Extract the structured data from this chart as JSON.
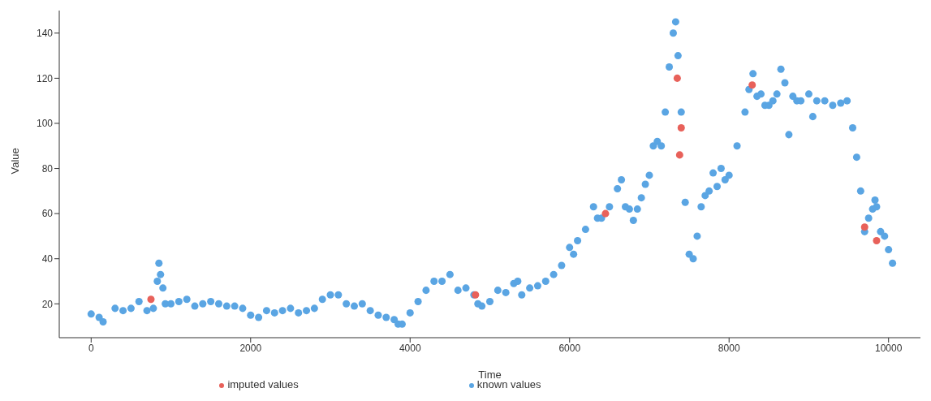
{
  "chart_data": {
    "type": "scatter",
    "xlabel": "Time",
    "ylabel": "Value",
    "xlim": [
      -400,
      10400
    ],
    "xticks": [
      0,
      2000,
      4000,
      6000,
      8000,
      10000
    ],
    "ylim": [
      5,
      150
    ],
    "yticks": [
      20,
      40,
      60,
      80,
      100,
      120,
      140
    ],
    "grid": false,
    "legend": "bottom",
    "marker": "circle",
    "series": [
      {
        "name": "imputed values",
        "color": "#e8615a",
        "x": [
          750,
          4820,
          6450,
          7350,
          7380,
          7400,
          8290,
          9700,
          9850
        ],
        "values": [
          22,
          24,
          60,
          120,
          86,
          98,
          117,
          54,
          48
        ]
      },
      {
        "name": "known values",
        "color": "#5aa5e3",
        "x": [
          0,
          100,
          150,
          300,
          400,
          500,
          600,
          700,
          780,
          830,
          850,
          870,
          900,
          930,
          1000,
          1100,
          1200,
          1300,
          1400,
          1500,
          1600,
          1700,
          1800,
          1900,
          2000,
          2100,
          2200,
          2300,
          2400,
          2500,
          2600,
          2700,
          2800,
          2900,
          3000,
          3100,
          3200,
          3300,
          3400,
          3500,
          3600,
          3700,
          3800,
          3850,
          3900,
          4000,
          4100,
          4200,
          4300,
          4400,
          4500,
          4600,
          4700,
          4800,
          4850,
          4900,
          5000,
          5100,
          5200,
          5300,
          5350,
          5400,
          5500,
          5600,
          5700,
          5800,
          5900,
          6000,
          6050,
          6100,
          6200,
          6300,
          6350,
          6400,
          6500,
          6600,
          6650,
          6700,
          6750,
          6800,
          6850,
          6900,
          6950,
          7000,
          7050,
          7100,
          7150,
          7200,
          7250,
          7300,
          7330,
          7360,
          7400,
          7450,
          7500,
          7550,
          7600,
          7650,
          7700,
          7750,
          7800,
          7850,
          7900,
          7950,
          8000,
          8100,
          8200,
          8250,
          8300,
          8350,
          8400,
          8450,
          8500,
          8550,
          8600,
          8650,
          8700,
          8750,
          8800,
          8850,
          8900,
          9000,
          9050,
          9100,
          9200,
          9300,
          9400,
          9480,
          9550,
          9600,
          9650,
          9700,
          9750,
          9800,
          9830,
          9850,
          9900,
          9950,
          10000,
          10050
        ],
        "values": [
          15.5,
          14,
          12,
          18,
          17,
          18,
          21,
          17,
          18,
          30,
          38,
          33,
          27,
          20,
          20,
          21,
          22,
          19,
          20,
          21,
          20,
          19,
          19,
          18,
          15,
          14,
          17,
          16,
          17,
          18,
          16,
          17,
          18,
          22,
          24,
          24,
          20,
          19,
          20,
          17,
          15,
          14,
          13,
          11,
          11,
          16,
          21,
          26,
          30,
          30,
          33,
          26,
          27,
          24,
          20,
          19,
          21,
          26,
          25,
          29,
          30,
          24,
          27,
          28,
          30,
          33,
          37,
          45,
          42,
          48,
          53,
          63,
          58,
          58,
          63,
          71,
          75,
          63,
          62,
          57,
          62,
          67,
          73,
          77,
          90,
          92,
          90,
          105,
          125,
          140,
          145,
          130,
          105,
          65,
          42,
          40,
          50,
          63,
          68,
          70,
          78,
          72,
          80,
          75,
          77,
          90,
          105,
          115,
          122,
          112,
          113,
          108,
          108,
          110,
          113,
          124,
          118,
          95,
          112,
          110,
          110,
          113,
          103,
          110,
          110,
          108,
          109,
          110,
          98,
          85,
          70,
          52,
          58,
          62,
          66,
          63,
          52,
          50,
          44,
          38
        ]
      }
    ]
  }
}
